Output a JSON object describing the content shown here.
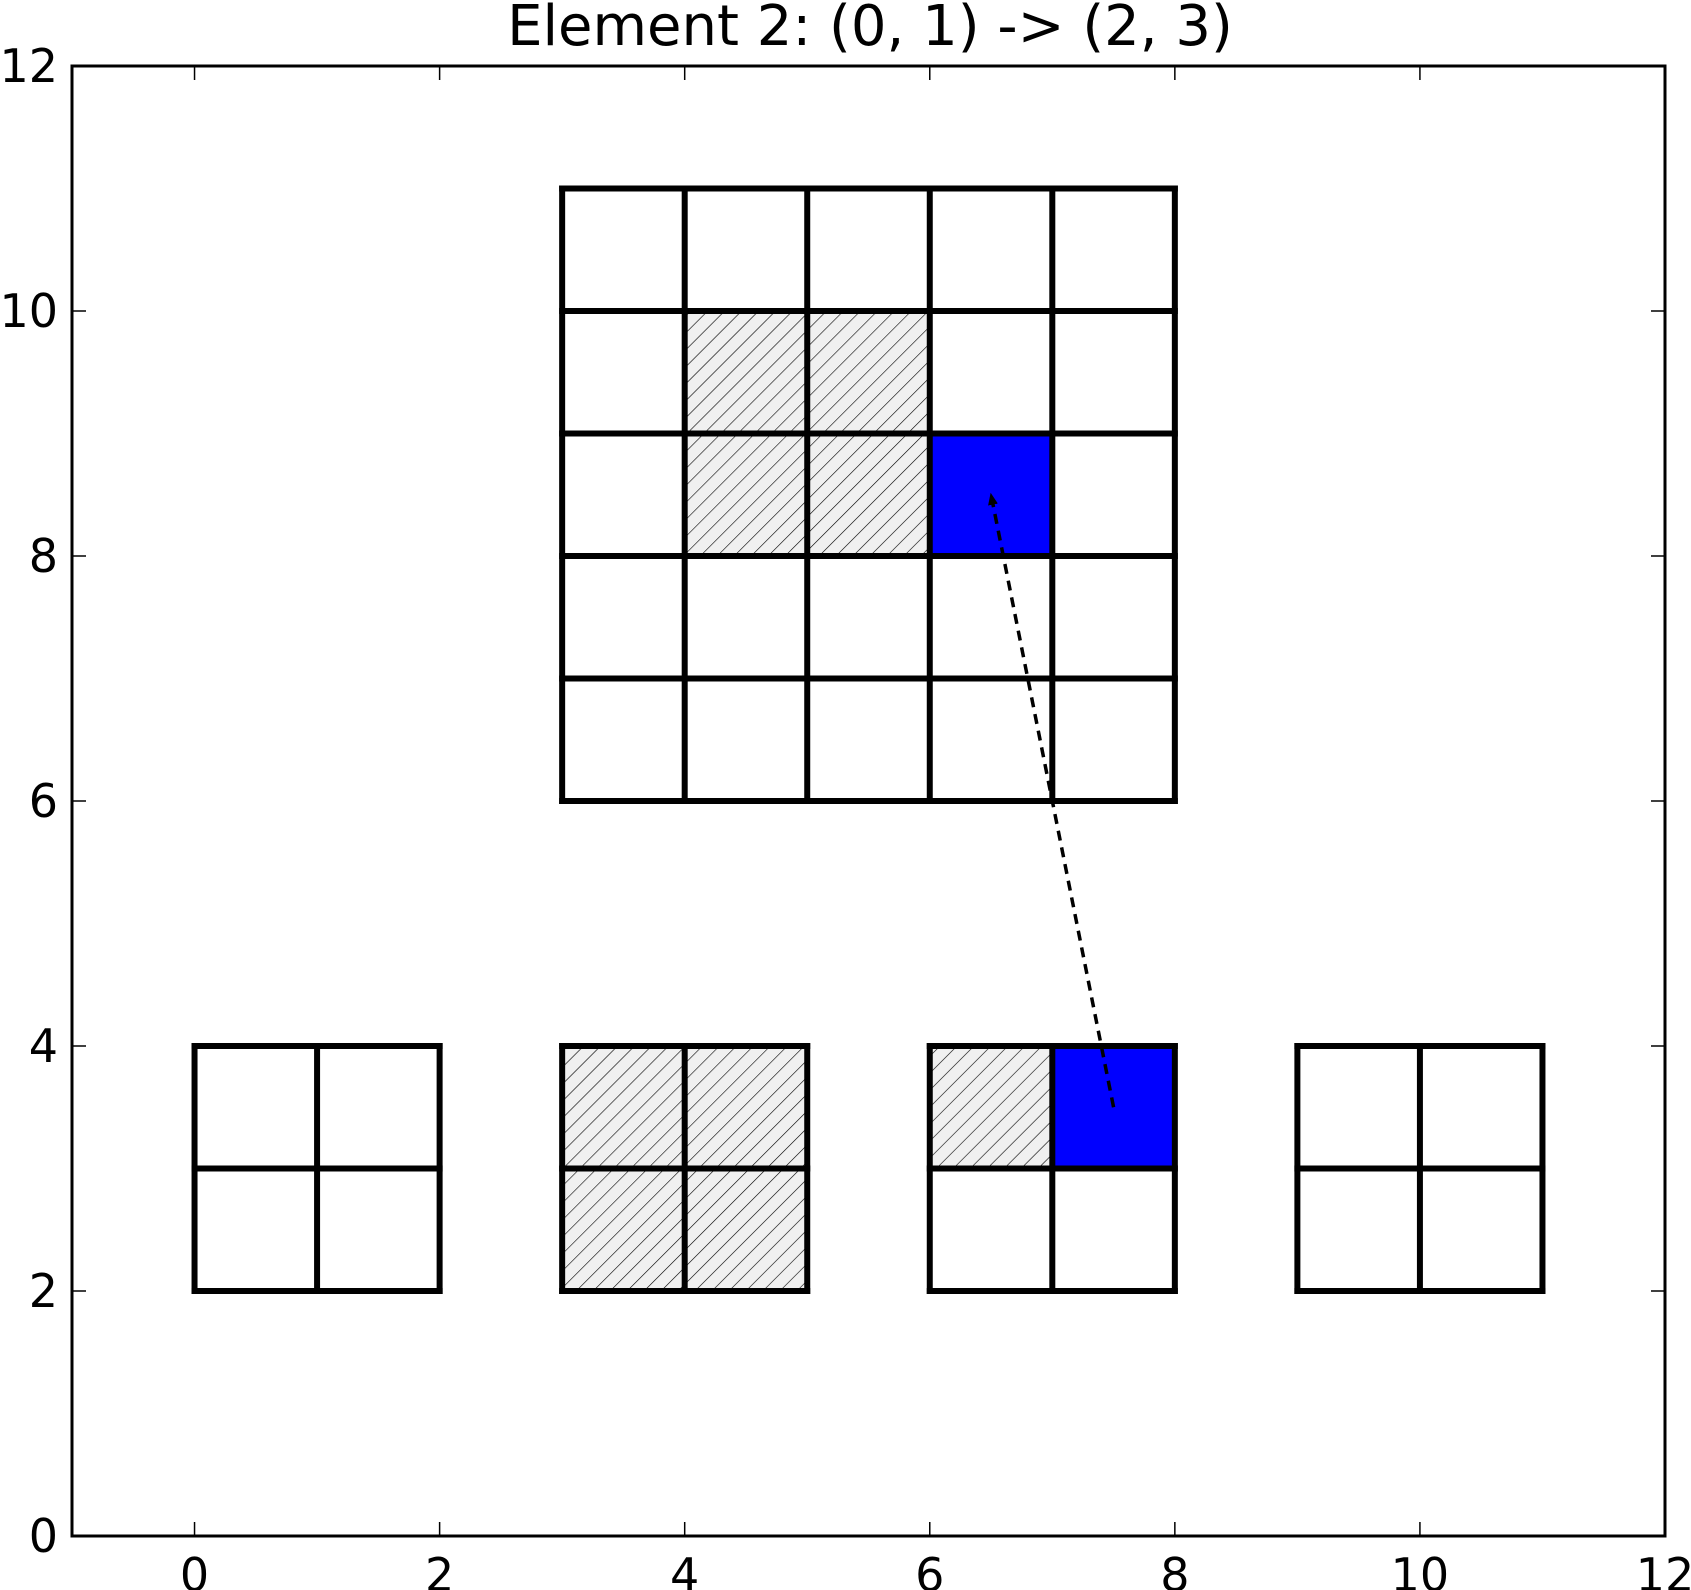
{
  "title": "Element 2: (0, 1) -> (2, 3)",
  "colors": {
    "grid_line": "#000000",
    "highlight": "#0000ff",
    "hatch_fill": "#f0f0f0",
    "background": "#ffffff"
  },
  "chart_data": {
    "type": "diagram",
    "xlim": [
      -1,
      12
    ],
    "ylim": [
      0,
      12
    ],
    "x_ticks": [
      "0",
      "2",
      "4",
      "6",
      "8",
      "10",
      "12"
    ],
    "y_ticks": [
      "0",
      "2",
      "4",
      "6",
      "8",
      "10",
      "12"
    ],
    "grids": [
      {
        "name": "large-grid",
        "origin": [
          3,
          6
        ],
        "rows": 5,
        "cols": 5,
        "cell": 1,
        "hatched": [
          [
            4,
            9
          ],
          [
            5,
            9
          ],
          [
            4,
            8
          ],
          [
            5,
            8
          ]
        ],
        "highlighted": [
          [
            6,
            8
          ]
        ]
      },
      {
        "name": "small-grid-1",
        "origin": [
          0,
          2
        ],
        "rows": 2,
        "cols": 2,
        "cell": 1,
        "hatched": [],
        "highlighted": []
      },
      {
        "name": "small-grid-2",
        "origin": [
          3,
          2
        ],
        "rows": 2,
        "cols": 2,
        "cell": 1,
        "hatched": [
          [
            3,
            3
          ],
          [
            4,
            3
          ],
          [
            3,
            2
          ],
          [
            4,
            2
          ]
        ],
        "highlighted": []
      },
      {
        "name": "small-grid-3",
        "origin": [
          6,
          2
        ],
        "rows": 2,
        "cols": 2,
        "cell": 1,
        "hatched": [
          [
            6,
            3
          ]
        ],
        "highlighted": [
          [
            7,
            3
          ]
        ]
      },
      {
        "name": "small-grid-4",
        "origin": [
          9,
          2
        ],
        "rows": 2,
        "cols": 2,
        "cell": 1,
        "hatched": [],
        "highlighted": []
      }
    ],
    "arrow": {
      "from": [
        7.5,
        3.5
      ],
      "to": [
        6.5,
        8.5
      ],
      "style": "dashed"
    }
  }
}
